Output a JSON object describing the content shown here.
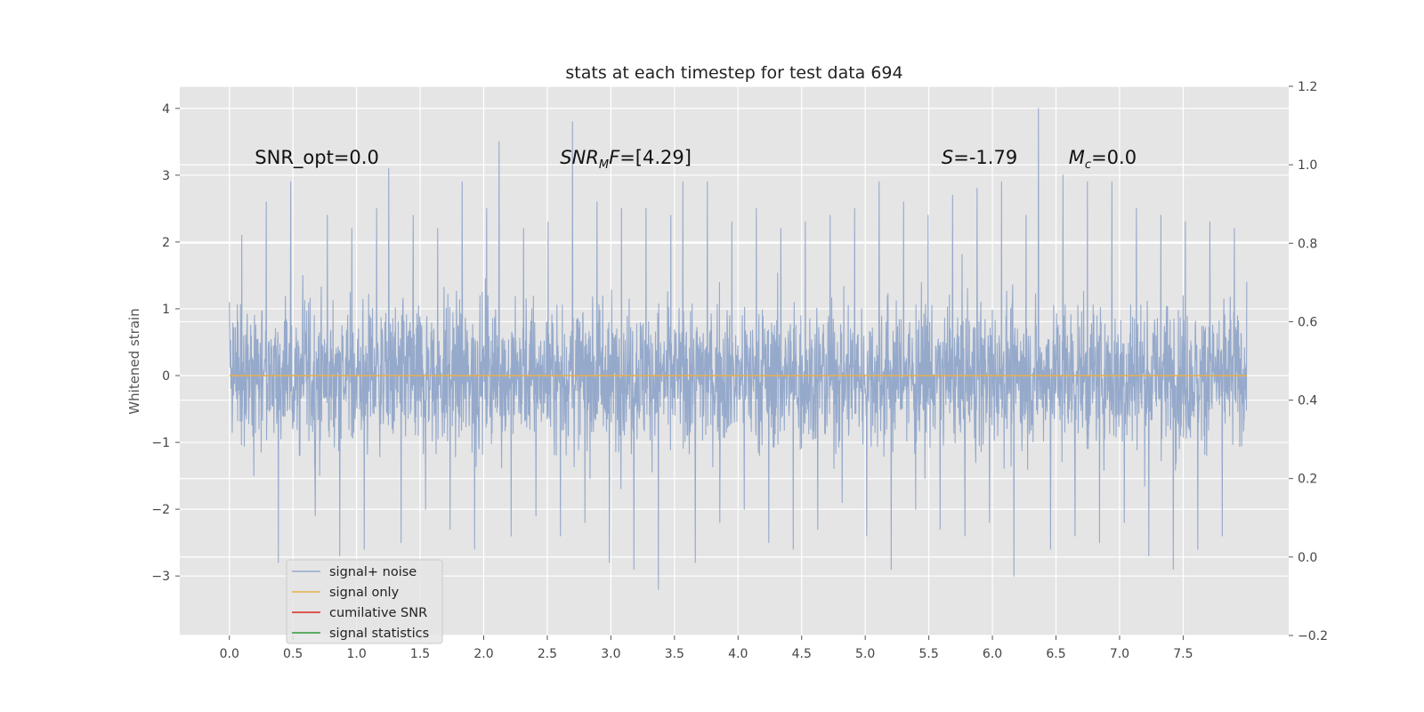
{
  "colors": {
    "axes_background": "#e5e5e5",
    "grid": "#ffffff",
    "signal_noise": "#95a9cb",
    "signal_only": "#e8b04b",
    "cumulative_snr": "#d62a1e",
    "signal_statistics": "#2f9a3a"
  },
  "chart_data": {
    "type": "line",
    "title": "stats at each timestep for test data 694",
    "xlabel": "",
    "ylabel": "Whitened strain",
    "xlim": [
      -0.39,
      8.33
    ],
    "ylim": [
      -3.89,
      4.33
    ],
    "y2lim": [
      -0.2,
      1.2
    ],
    "grid": true,
    "x_ticks": [
      "0.0",
      "0.5",
      "1.0",
      "1.5",
      "2.0",
      "2.5",
      "3.0",
      "3.5",
      "4.0",
      "4.5",
      "5.0",
      "5.5",
      "6.0",
      "6.5",
      "7.0",
      "7.5"
    ],
    "y_ticks": [
      "4",
      "3",
      "2",
      "1",
      "0",
      "−1",
      "−2",
      "−3"
    ],
    "y2_ticks": [
      "1.2",
      "1.0",
      "0.8",
      "0.6",
      "0.4",
      "0.2",
      "0.0",
      "−0.2"
    ],
    "annotations": [
      {
        "text": "SNR_opt=0.0",
        "x": 0.2
      },
      {
        "text": "SNR",
        "sub": "M",
        "tail": "F=[4.29]",
        "x": 2.6,
        "italic": true
      },
      {
        "text": "S",
        "tail": "=-1.79",
        "x": 5.6,
        "italic": true
      },
      {
        "text": "M",
        "sub": "c",
        "tail": "=0.0",
        "x": 6.6,
        "italic": true
      }
    ],
    "legend": {
      "position": "lower-left",
      "entries": [
        "signal+ noise",
        "signal only",
        "cumilative SNR",
        "signal statistics"
      ]
    },
    "series": [
      {
        "name": "signal+ noise",
        "axis": "left",
        "x_range": [
          0.0,
          8.0
        ],
        "display": "dense noise trace",
        "ref_values": [
          1.1,
          2.1,
          -1.5,
          2.6,
          -2.8,
          2.9,
          1.5,
          -2.1,
          2.4,
          -2.7,
          2.2,
          -2.6,
          2.5,
          3.1,
          -2.5,
          2.4,
          -2.0,
          2.2,
          -2.3,
          2.9,
          -2.6,
          2.5,
          3.5,
          -2.4,
          2.2,
          -2.1,
          2.3,
          -2.4,
          3.8,
          -2.2,
          2.6,
          -2.8,
          2.5,
          -2.9,
          2.5,
          -3.2,
          2.4,
          2.9,
          -2.8,
          2.9,
          -2.2,
          2.3,
          -2.0,
          2.5,
          -2.5,
          2.2,
          -2.6,
          2.3,
          -2.3,
          2.4,
          -1.9,
          2.5,
          -2.4,
          2.9,
          -2.9,
          2.6,
          -2.0,
          2.4,
          -2.3,
          2.7,
          -2.4,
          2.8,
          -2.2,
          2.9,
          -3.0,
          2.4,
          4.0,
          -2.6,
          3.0,
          -2.4,
          2.9,
          -2.5,
          2.9,
          -2.2,
          2.5,
          -2.7,
          2.4,
          -2.9,
          2.3,
          -2.6,
          2.3,
          -2.4,
          2.2,
          1.4
        ]
      },
      {
        "name": "signal only",
        "axis": "left",
        "x_range": [
          0.0,
          8.0
        ],
        "values": [
          0.0,
          0.0
        ]
      }
    ]
  }
}
